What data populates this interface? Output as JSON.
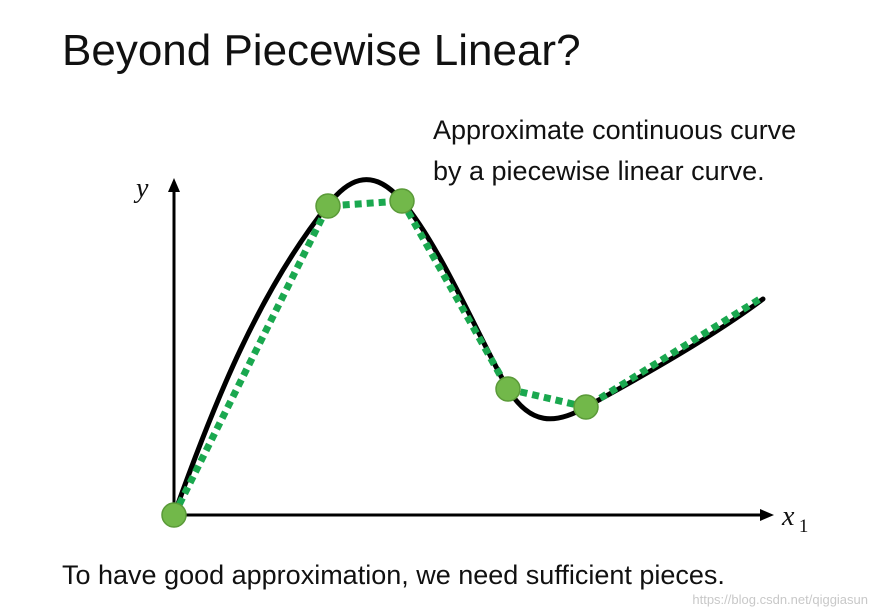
{
  "slide": {
    "title": "Beyond Piecewise Linear?",
    "annotation_lines": [
      "Approximate continuous curve",
      "by a piecewise linear curve."
    ],
    "caption": "To have good approximation, we need sufficient pieces.",
    "watermark": "https://blog.csdn.net/qiggiasun"
  },
  "diagram": {
    "y_axis_label": "y",
    "x_axis_label": "x",
    "x_axis_subscript": "1",
    "colors": {
      "axis": "#000000",
      "curve": "#000000",
      "piecewise": "#1aa84f",
      "point_fill": "#72b84a",
      "point_stroke": "#5a9a38"
    }
  }
}
